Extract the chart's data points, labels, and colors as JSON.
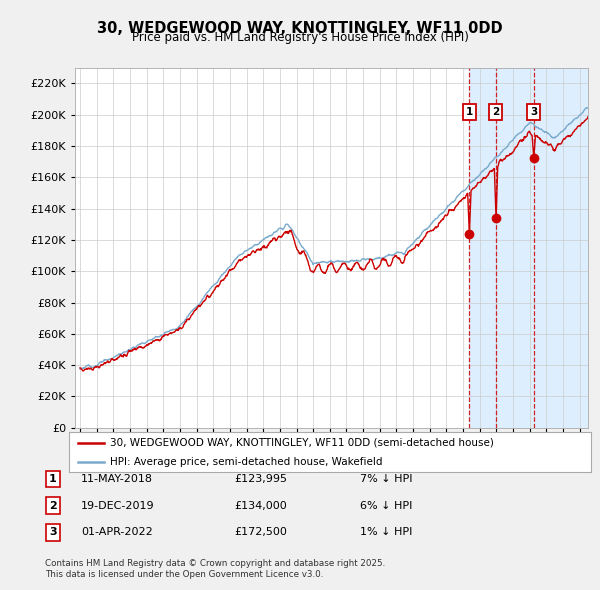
{
  "title_line1": "30, WEDGEWOOD WAY, KNOTTINGLEY, WF11 0DD",
  "title_line2": "Price paid vs. HM Land Registry's House Price Index (HPI)",
  "red_label": "30, WEDGEWOOD WAY, KNOTTINGLEY, WF11 0DD (semi-detached house)",
  "blue_label": "HPI: Average price, semi-detached house, Wakefield",
  "footnote": "Contains HM Land Registry data © Crown copyright and database right 2025.\nThis data is licensed under the Open Government Licence v3.0.",
  "transactions": [
    {
      "num": 1,
      "date": "11-MAY-2018",
      "price": "£123,995",
      "change": "7% ↓ HPI",
      "year": 2018.37
    },
    {
      "num": 2,
      "date": "19-DEC-2019",
      "price": "£134,000",
      "change": "6% ↓ HPI",
      "year": 2019.97
    },
    {
      "num": 3,
      "date": "01-APR-2022",
      "price": "£172,500",
      "change": "1% ↓ HPI",
      "year": 2022.25
    }
  ],
  "trans_prices": [
    123995,
    134000,
    172500
  ],
  "ylim": [
    0,
    230000
  ],
  "yticks": [
    0,
    20000,
    40000,
    60000,
    80000,
    100000,
    120000,
    140000,
    160000,
    180000,
    200000,
    220000
  ],
  "xlim_start": 1994.7,
  "xlim_end": 2025.5,
  "background_color": "#f0f0f0",
  "plot_bg_color": "#ffffff",
  "shade_bg_color": "#ddeeff",
  "red_color": "#cc0000",
  "blue_color": "#7aaacc",
  "grid_color": "#cccccc",
  "fig_width": 6.0,
  "fig_height": 5.9
}
